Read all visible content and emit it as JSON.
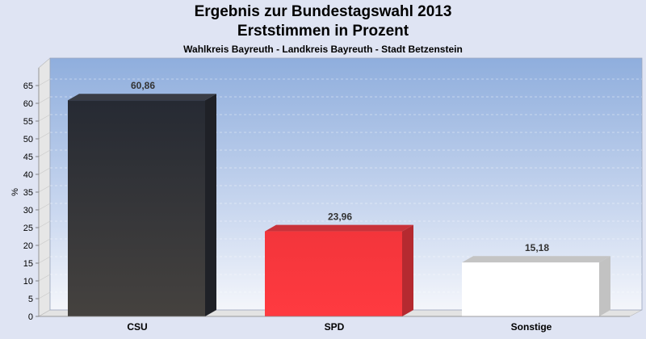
{
  "chart_data": {
    "type": "bar",
    "title": "Ergebnis zur Bundestagswahl 2013",
    "subtitle": "Erststimmen in Prozent",
    "caption": "Wahlkreis Bayreuth - Landkreis Bayreuth - Stadt Betzenstein",
    "ylabel": "%",
    "xlabel": "",
    "categories": [
      "CSU",
      "SPD",
      "Sonstige"
    ],
    "values": [
      60.86,
      23.96,
      15.18
    ],
    "value_labels": [
      "60,86",
      "23,96",
      "15,18"
    ],
    "colors": [
      "#2a2d35",
      "#f03038",
      "#ffffff"
    ],
    "ylim": [
      0,
      70
    ],
    "yticks": [
      0,
      5,
      10,
      15,
      20,
      25,
      30,
      35,
      40,
      45,
      50,
      55,
      60,
      65
    ],
    "grid": true,
    "legend": "none"
  }
}
